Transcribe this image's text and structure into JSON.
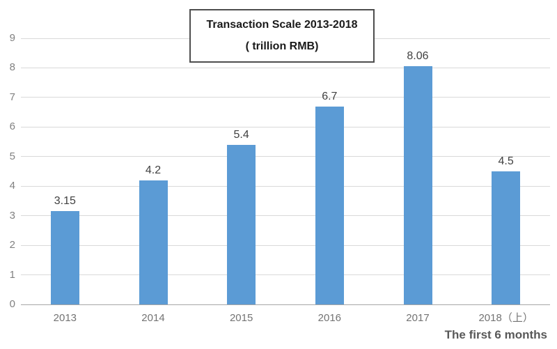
{
  "chart_data": {
    "type": "bar",
    "title": "Transaction Scale 2013-2018",
    "subtitle": "( trillion RMB)",
    "categories": [
      "2013",
      "2014",
      "2015",
      "2016",
      "2017",
      "2018（上）"
    ],
    "values": [
      3.15,
      4.2,
      5.4,
      6.7,
      8.06,
      4.5
    ],
    "value_labels": [
      "3.15",
      "4.2",
      "5.4",
      "6.7",
      "8.06",
      "4.5"
    ],
    "yticks": [
      "0",
      "1",
      "2",
      "3",
      "4",
      "5",
      "6",
      "7",
      "8",
      "9"
    ],
    "ylim": [
      0,
      9
    ],
    "grid": true,
    "legend": "none",
    "bar_color": "#5b9bd5",
    "gridline_color": "#d9d9d9",
    "axis_line_color": "#a6a6a6",
    "note": "The first 6 months"
  }
}
